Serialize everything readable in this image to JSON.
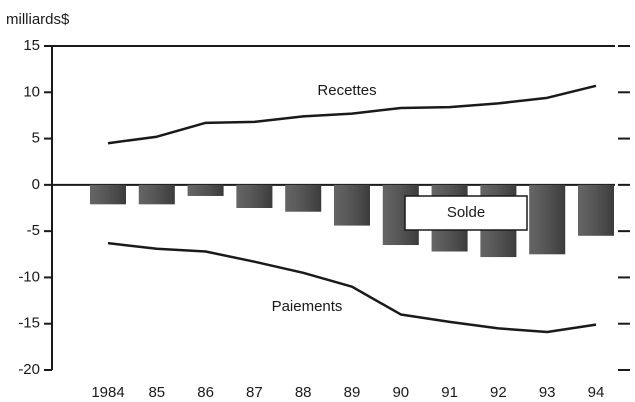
{
  "chart_data": {
    "type": "combo",
    "y_axis_label": "milliards$",
    "categories": [
      "1984",
      "85",
      "86",
      "87",
      "88",
      "89",
      "90",
      "91",
      "92",
      "93",
      "94"
    ],
    "series": [
      {
        "name": "Solde",
        "type": "bar",
        "color": "#4a4a4a",
        "values": [
          -2.1,
          -2.1,
          -1.2,
          -2.5,
          -2.9,
          -4.4,
          -6.5,
          -7.2,
          -7.8,
          -7.5,
          -5.5
        ]
      },
      {
        "name": "Recettes",
        "type": "line",
        "color": "#1a1a1a",
        "values": [
          4.5,
          5.2,
          6.7,
          6.8,
          7.4,
          7.7,
          8.3,
          8.4,
          8.8,
          9.4,
          10.7
        ]
      },
      {
        "name": "Paiements",
        "type": "line",
        "color": "#1a1a1a",
        "values": [
          -6.3,
          -6.9,
          -7.2,
          -8.3,
          -9.5,
          -11,
          -14,
          -14.8,
          -15.5,
          -15.9,
          -15.1
        ]
      }
    ],
    "ylim": [
      -20,
      15
    ],
    "yticks": [
      -20,
      -15,
      -10,
      -5,
      0,
      5,
      10,
      15
    ],
    "grid": false
  }
}
